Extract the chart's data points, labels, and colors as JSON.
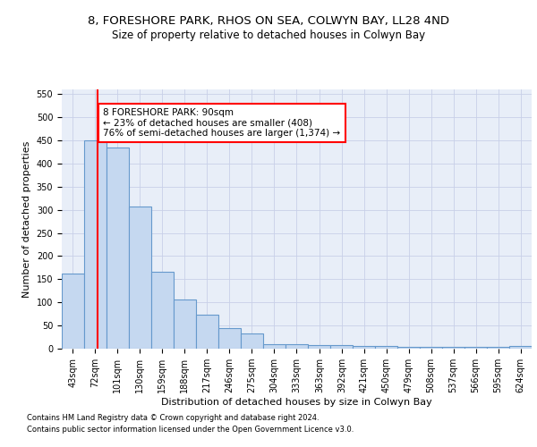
{
  "title": "8, FORESHORE PARK, RHOS ON SEA, COLWYN BAY, LL28 4ND",
  "subtitle": "Size of property relative to detached houses in Colwyn Bay",
  "xlabel": "Distribution of detached houses by size in Colwyn Bay",
  "ylabel": "Number of detached properties",
  "footer_line1": "Contains HM Land Registry data © Crown copyright and database right 2024.",
  "footer_line2": "Contains public sector information licensed under the Open Government Licence v3.0.",
  "bar_edges": [
    43,
    72,
    101,
    130,
    159,
    188,
    217,
    246,
    275,
    304,
    333,
    363,
    392,
    421,
    450,
    479,
    508,
    537,
    566,
    595,
    624
  ],
  "bar_heights": [
    163,
    450,
    435,
    307,
    166,
    106,
    74,
    45,
    33,
    10,
    10,
    8,
    8,
    5,
    5,
    3,
    3,
    3,
    3,
    3,
    5
  ],
  "bar_color": "#c5d8f0",
  "bar_edge_color": "#6699cc",
  "red_line_x": 90,
  "annotation_text": "8 FORESHORE PARK: 90sqm\n← 23% of detached houses are smaller (408)\n76% of semi-detached houses are larger (1,374) →",
  "annotation_box_color": "white",
  "annotation_box_edge": "red",
  "ylim": [
    0,
    560
  ],
  "bg_color": "#e8eef8",
  "grid_color": "#c8d0e8",
  "title_fontsize": 9.5,
  "subtitle_fontsize": 8.5,
  "ylabel_fontsize": 8,
  "xlabel_fontsize": 8,
  "tick_fontsize": 7,
  "annot_fontsize": 7.5,
  "footer_fontsize": 6
}
